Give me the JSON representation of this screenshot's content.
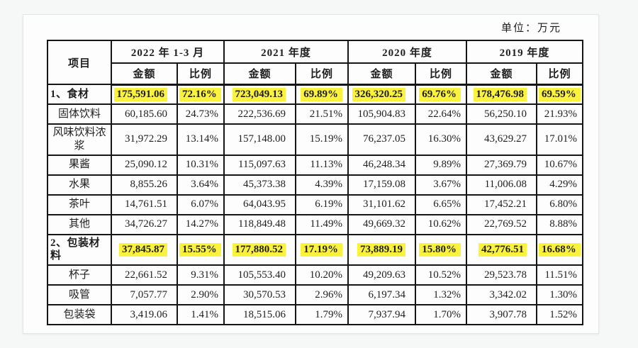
{
  "unit_label": "单位：万元",
  "table": {
    "item_header": "项目",
    "amount_label": "金额",
    "ratio_label": "比例",
    "highlight_color": "#fbf23e",
    "periods": [
      "2022 年 1-3 月",
      "2021 年度",
      "2020 年度",
      "2019 年度"
    ],
    "rows": [
      {
        "label": "1、食材",
        "highlight": true,
        "values": [
          "175,591.06",
          "72.16%",
          "723,049.13",
          "69.89%",
          "326,320.25",
          "69.76%",
          "178,476.98",
          "69.59%"
        ]
      },
      {
        "label": "固体饮料",
        "highlight": false,
        "values": [
          "60,185.60",
          "24.73%",
          "222,536.69",
          "21.51%",
          "105,904.83",
          "22.64%",
          "56,250.10",
          "21.93%"
        ]
      },
      {
        "label": "风味饮料浓浆",
        "highlight": false,
        "values": [
          "31,972.29",
          "13.14%",
          "157,148.00",
          "15.19%",
          "76,237.05",
          "16.30%",
          "43,629.27",
          "17.01%"
        ]
      },
      {
        "label": "果酱",
        "highlight": false,
        "values": [
          "25,090.12",
          "10.31%",
          "115,097.63",
          "11.13%",
          "46,248.34",
          "9.89%",
          "27,369.79",
          "10.67%"
        ]
      },
      {
        "label": "水果",
        "highlight": false,
        "values": [
          "8,855.26",
          "3.64%",
          "45,373.38",
          "4.39%",
          "17,159.08",
          "3.67%",
          "11,006.08",
          "4.29%"
        ]
      },
      {
        "label": "茶叶",
        "highlight": false,
        "values": [
          "14,761.51",
          "6.07%",
          "64,043.95",
          "6.19%",
          "31,101.62",
          "6.65%",
          "17,452.21",
          "6.80%"
        ]
      },
      {
        "label": "其他",
        "highlight": false,
        "values": [
          "34,726.27",
          "14.27%",
          "118,849.48",
          "11.49%",
          "49,669.32",
          "10.62%",
          "22,769.52",
          "8.88%"
        ]
      },
      {
        "label": "2、包装材料",
        "highlight": true,
        "values": [
          "37,845.87",
          "15.55%",
          "177,880.52",
          "17.19%",
          "73,889.19",
          "15.80%",
          "42,776.51",
          "16.68%"
        ]
      },
      {
        "label": "杯子",
        "highlight": false,
        "values": [
          "22,661.52",
          "9.31%",
          "105,553.40",
          "10.20%",
          "49,209.63",
          "10.52%",
          "29,523.78",
          "11.51%"
        ]
      },
      {
        "label": "吸管",
        "highlight": false,
        "values": [
          "7,057.77",
          "2.90%",
          "30,570.53",
          "2.96%",
          "6,197.34",
          "1.32%",
          "3,342.02",
          "1.30%"
        ]
      },
      {
        "label": "包装袋",
        "highlight": false,
        "values": [
          "3,419.06",
          "1.41%",
          "18,515.06",
          "1.79%",
          "7,937.94",
          "1.70%",
          "3,907.78",
          "1.52%"
        ]
      }
    ]
  }
}
